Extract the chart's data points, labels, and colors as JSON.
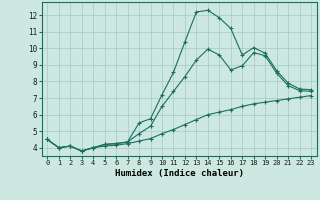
{
  "xlabel": "Humidex (Indice chaleur)",
  "background_color": "#cce8e0",
  "grid_color": "#aacec8",
  "line_color": "#1a6e60",
  "xlim": [
    -0.5,
    23.5
  ],
  "ylim": [
    3.5,
    12.8
  ],
  "xticks": [
    0,
    1,
    2,
    3,
    4,
    5,
    6,
    7,
    8,
    9,
    10,
    11,
    12,
    13,
    14,
    15,
    16,
    17,
    18,
    19,
    20,
    21,
    22,
    23
  ],
  "yticks": [
    4,
    5,
    6,
    7,
    8,
    9,
    10,
    11,
    12
  ],
  "line1_x": [
    0,
    1,
    2,
    3,
    4,
    5,
    6,
    7,
    8,
    9,
    10,
    11,
    12,
    13,
    14,
    15,
    16,
    17,
    18,
    19,
    20,
    21,
    22,
    23
  ],
  "line1_y": [
    4.5,
    4.0,
    4.1,
    3.8,
    4.0,
    4.2,
    4.25,
    4.35,
    5.5,
    5.75,
    7.2,
    8.55,
    10.4,
    12.2,
    12.3,
    11.85,
    11.2,
    9.6,
    10.05,
    9.7,
    8.65,
    7.9,
    7.55,
    7.5
  ],
  "line2_x": [
    0,
    1,
    2,
    3,
    4,
    5,
    6,
    7,
    8,
    9,
    10,
    11,
    12,
    13,
    14,
    15,
    16,
    17,
    18,
    19,
    20,
    21,
    22,
    23
  ],
  "line2_y": [
    4.5,
    4.0,
    4.1,
    3.8,
    4.0,
    4.2,
    4.25,
    4.35,
    4.85,
    5.3,
    6.5,
    7.4,
    8.3,
    9.3,
    9.95,
    9.6,
    8.7,
    8.95,
    9.75,
    9.55,
    8.5,
    7.75,
    7.45,
    7.4
  ],
  "line3_x": [
    0,
    1,
    2,
    3,
    4,
    5,
    6,
    7,
    8,
    9,
    10,
    11,
    12,
    13,
    14,
    15,
    16,
    17,
    18,
    19,
    20,
    21,
    22,
    23
  ],
  "line3_y": [
    4.5,
    4.0,
    4.1,
    3.8,
    4.0,
    4.1,
    4.15,
    4.25,
    4.4,
    4.55,
    4.85,
    5.1,
    5.4,
    5.7,
    6.0,
    6.15,
    6.3,
    6.5,
    6.65,
    6.75,
    6.85,
    6.95,
    7.05,
    7.15
  ]
}
